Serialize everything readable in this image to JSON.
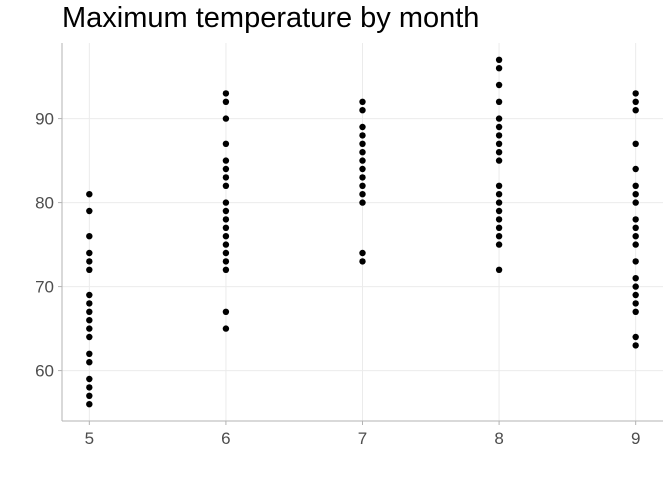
{
  "chart_data": {
    "type": "scatter",
    "title": "Maximum temperature by month",
    "xlabel": "",
    "ylabel": "",
    "x_ticks": [
      5,
      6,
      7,
      8,
      9
    ],
    "y_ticks": [
      60,
      70,
      80,
      90
    ],
    "xlim": [
      4.8,
      9.2
    ],
    "ylim": [
      54,
      99
    ],
    "grid": true,
    "legend": "none",
    "colors": {
      "point": "#000000",
      "grid": "#ebebeb",
      "axis": "#b3b3b3",
      "tick_text": "#4d4d4d"
    },
    "points": [
      {
        "x": 5,
        "y": 81
      },
      {
        "x": 5,
        "y": 79
      },
      {
        "x": 5,
        "y": 76
      },
      {
        "x": 5,
        "y": 74
      },
      {
        "x": 5,
        "y": 73
      },
      {
        "x": 5,
        "y": 72
      },
      {
        "x": 5,
        "y": 69
      },
      {
        "x": 5,
        "y": 68
      },
      {
        "x": 5,
        "y": 67
      },
      {
        "x": 5,
        "y": 66
      },
      {
        "x": 5,
        "y": 65
      },
      {
        "x": 5,
        "y": 64
      },
      {
        "x": 5,
        "y": 62
      },
      {
        "x": 5,
        "y": 61
      },
      {
        "x": 5,
        "y": 59
      },
      {
        "x": 5,
        "y": 58
      },
      {
        "x": 5,
        "y": 57
      },
      {
        "x": 5,
        "y": 56
      },
      {
        "x": 6,
        "y": 93
      },
      {
        "x": 6,
        "y": 92
      },
      {
        "x": 6,
        "y": 90
      },
      {
        "x": 6,
        "y": 87
      },
      {
        "x": 6,
        "y": 85
      },
      {
        "x": 6,
        "y": 84
      },
      {
        "x": 6,
        "y": 83
      },
      {
        "x": 6,
        "y": 82
      },
      {
        "x": 6,
        "y": 80
      },
      {
        "x": 6,
        "y": 79
      },
      {
        "x": 6,
        "y": 78
      },
      {
        "x": 6,
        "y": 77
      },
      {
        "x": 6,
        "y": 76
      },
      {
        "x": 6,
        "y": 75
      },
      {
        "x": 6,
        "y": 74
      },
      {
        "x": 6,
        "y": 73
      },
      {
        "x": 6,
        "y": 72
      },
      {
        "x": 6,
        "y": 67
      },
      {
        "x": 6,
        "y": 65
      },
      {
        "x": 7,
        "y": 92
      },
      {
        "x": 7,
        "y": 91
      },
      {
        "x": 7,
        "y": 89
      },
      {
        "x": 7,
        "y": 88
      },
      {
        "x": 7,
        "y": 87
      },
      {
        "x": 7,
        "y": 86
      },
      {
        "x": 7,
        "y": 85
      },
      {
        "x": 7,
        "y": 84
      },
      {
        "x": 7,
        "y": 83
      },
      {
        "x": 7,
        "y": 82
      },
      {
        "x": 7,
        "y": 81
      },
      {
        "x": 7,
        "y": 80
      },
      {
        "x": 7,
        "y": 74
      },
      {
        "x": 7,
        "y": 73
      },
      {
        "x": 8,
        "y": 97
      },
      {
        "x": 8,
        "y": 96
      },
      {
        "x": 8,
        "y": 94
      },
      {
        "x": 8,
        "y": 92
      },
      {
        "x": 8,
        "y": 90
      },
      {
        "x": 8,
        "y": 89
      },
      {
        "x": 8,
        "y": 88
      },
      {
        "x": 8,
        "y": 87
      },
      {
        "x": 8,
        "y": 86
      },
      {
        "x": 8,
        "y": 85
      },
      {
        "x": 8,
        "y": 82
      },
      {
        "x": 8,
        "y": 81
      },
      {
        "x": 8,
        "y": 80
      },
      {
        "x": 8,
        "y": 79
      },
      {
        "x": 8,
        "y": 78
      },
      {
        "x": 8,
        "y": 77
      },
      {
        "x": 8,
        "y": 76
      },
      {
        "x": 8,
        "y": 75
      },
      {
        "x": 8,
        "y": 72
      },
      {
        "x": 9,
        "y": 93
      },
      {
        "x": 9,
        "y": 92
      },
      {
        "x": 9,
        "y": 91
      },
      {
        "x": 9,
        "y": 87
      },
      {
        "x": 9,
        "y": 84
      },
      {
        "x": 9,
        "y": 82
      },
      {
        "x": 9,
        "y": 81
      },
      {
        "x": 9,
        "y": 80
      },
      {
        "x": 9,
        "y": 78
      },
      {
        "x": 9,
        "y": 77
      },
      {
        "x": 9,
        "y": 76
      },
      {
        "x": 9,
        "y": 75
      },
      {
        "x": 9,
        "y": 73
      },
      {
        "x": 9,
        "y": 71
      },
      {
        "x": 9,
        "y": 70
      },
      {
        "x": 9,
        "y": 69
      },
      {
        "x": 9,
        "y": 68
      },
      {
        "x": 9,
        "y": 67
      },
      {
        "x": 9,
        "y": 64
      },
      {
        "x": 9,
        "y": 63
      }
    ]
  }
}
